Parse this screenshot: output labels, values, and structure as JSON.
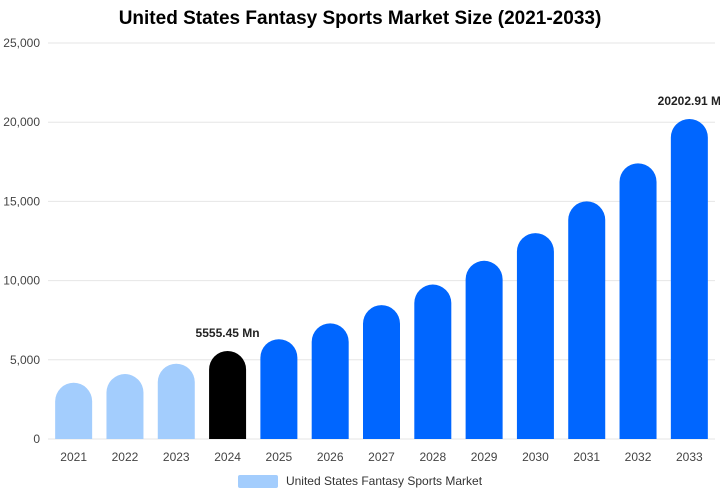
{
  "chart_data": {
    "type": "bar",
    "title": "United States Fantasy Sports Market Size (2021-2033)",
    "categories": [
      "2021",
      "2022",
      "2023",
      "2024",
      "2025",
      "2026",
      "2027",
      "2028",
      "2029",
      "2030",
      "2031",
      "2032",
      "2033"
    ],
    "series": [
      {
        "name": "United States Fantasy Sports Market",
        "values": [
          3550,
          4100,
          4750,
          5555.45,
          6300,
          7300,
          8450,
          9750,
          11250,
          13000,
          15000,
          17400,
          20202.91
        ]
      }
    ],
    "ylim": [
      0,
      25000
    ],
    "yticks": [
      "0",
      "5,000",
      "10,000",
      "15,000",
      "20,000",
      "25,000"
    ],
    "ytick_values": [
      0,
      5000,
      10000,
      15000,
      20000,
      25000
    ],
    "grid": true,
    "legend": "bottom",
    "annotations": [
      {
        "category": "2024",
        "text": "5555.45 Mn"
      },
      {
        "category": "2033",
        "text": "20202.91 M"
      }
    ],
    "colors": {
      "historical": "#a3cdfd",
      "current": "#000000",
      "forecast": "#0066ff",
      "legend": "#a3cdfd",
      "grid": "#e6e6e6"
    },
    "color_groups": [
      "historical",
      "historical",
      "historical",
      "current",
      "forecast",
      "forecast",
      "forecast",
      "forecast",
      "forecast",
      "forecast",
      "forecast",
      "forecast",
      "forecast"
    ]
  }
}
